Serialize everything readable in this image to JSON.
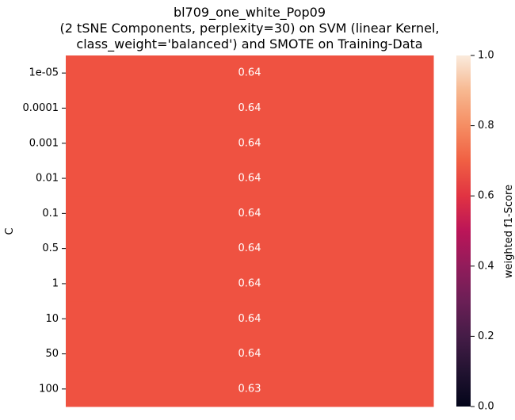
{
  "chart_data": {
    "type": "heatmap",
    "title_lines": [
      "bl709_one_white_Pop09",
      "(2 tSNE Components, perplexity=30) on SVM (linear Kernel,",
      "class_weight='balanced') and SMOTE on Training-Data"
    ],
    "ylabel": "C",
    "xlabel": "",
    "y_categories": [
      "1e-05",
      "0.0001",
      "0.001",
      "0.01",
      "0.1",
      "0.5",
      "1",
      "10",
      "50",
      "100"
    ],
    "x_categories": [
      ""
    ],
    "values": [
      [
        0.64
      ],
      [
        0.64
      ],
      [
        0.64
      ],
      [
        0.64
      ],
      [
        0.64
      ],
      [
        0.64
      ],
      [
        0.64
      ],
      [
        0.64
      ],
      [
        0.64
      ],
      [
        0.63
      ]
    ],
    "value_labels": [
      [
        "0.64"
      ],
      [
        "0.64"
      ],
      [
        "0.64"
      ],
      [
        "0.64"
      ],
      [
        "0.64"
      ],
      [
        "0.64"
      ],
      [
        "0.64"
      ],
      [
        "0.64"
      ],
      [
        "0.64"
      ],
      [
        "0.63"
      ]
    ],
    "colorbar": {
      "label": "weighted f1-Score",
      "range": [
        0.0,
        1.0
      ],
      "ticks": [
        0.0,
        0.2,
        0.4,
        0.6,
        0.8,
        1.0
      ],
      "tick_labels": [
        "0.0",
        "0.2",
        "0.4",
        "0.6",
        "0.8",
        "1.0"
      ],
      "colormap": "rocket"
    },
    "cell_color": "#ef5241",
    "cell_text_color": "#ffffff"
  }
}
